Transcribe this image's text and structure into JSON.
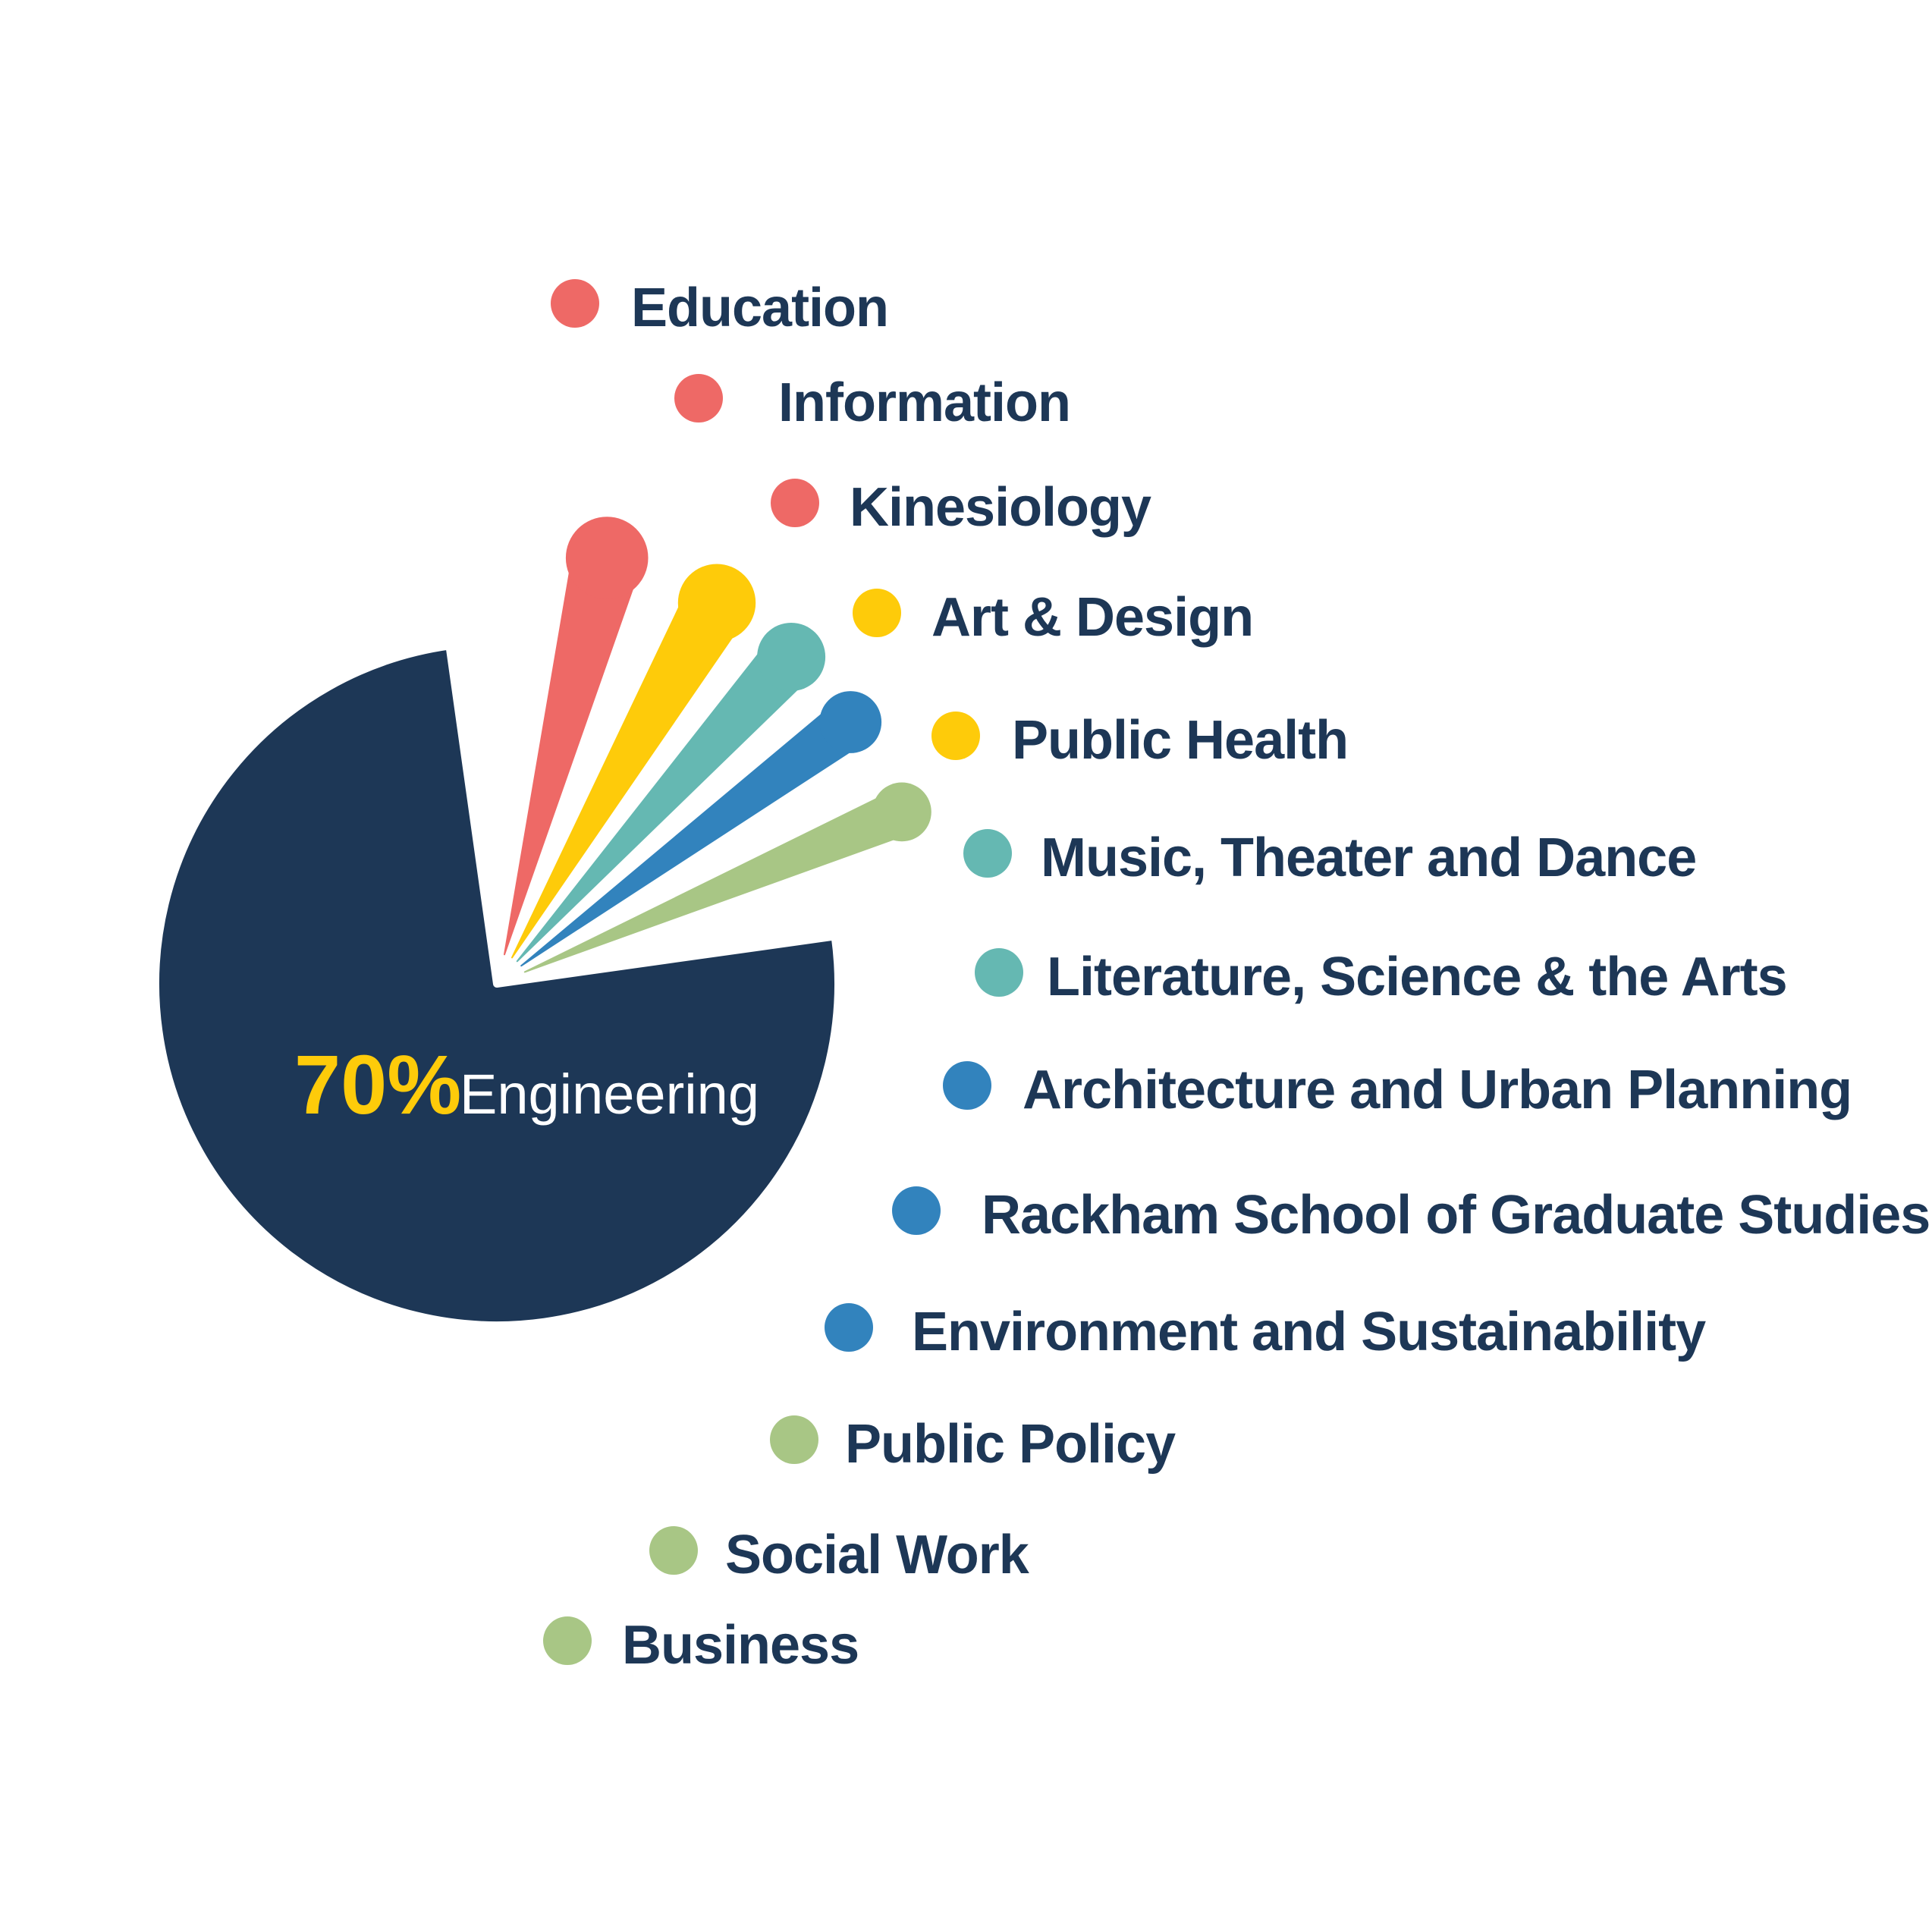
{
  "colors": {
    "background": "#ffffff",
    "engineering": "#1d3756",
    "pct_accent": "#fecb0a",
    "label_text": "#1d3756",
    "red": "#ee6966",
    "yellow": "#fecb0a",
    "teal": "#65b8b2",
    "blue": "#3283bd",
    "green": "#a8c685"
  },
  "chart_data": {
    "type": "pie",
    "main_slice": {
      "label": "Engineering",
      "value_text": "70%",
      "value": 70,
      "color": "#1d3756"
    },
    "groups": [
      {
        "color": "#ee6966",
        "items": [
          "Education",
          "Information",
          "Kinesiology"
        ]
      },
      {
        "color": "#fecb0a",
        "items": [
          "Art & Design",
          "Public Health"
        ]
      },
      {
        "color": "#65b8b2",
        "items": [
          "Music, Theater and Dance",
          "Literature, Science & the Arts"
        ]
      },
      {
        "color": "#3283bd",
        "items": [
          "Architecture and Urban Planning",
          "Rackham School of Graduate Studies",
          "Environment and Sustainability"
        ]
      },
      {
        "color": "#a8c685",
        "items": [
          "Public Policy",
          "Social Work",
          "Business"
        ]
      }
    ],
    "legend": [
      {
        "label": "Education",
        "color": "#ee6966"
      },
      {
        "label": "Information",
        "color": "#ee6966"
      },
      {
        "label": "Kinesiology",
        "color": "#ee6966"
      },
      {
        "label": "Art & Design",
        "color": "#fecb0a"
      },
      {
        "label": "Public Health",
        "color": "#fecb0a"
      },
      {
        "label": "Music, Theater and Dance",
        "color": "#65b8b2"
      },
      {
        "label": "Literature, Science & the Arts",
        "color": "#65b8b2"
      },
      {
        "label": "Architecture and Urban Planning",
        "color": "#3283bd"
      },
      {
        "label": "Rackham School of Graduate Studies",
        "color": "#3283bd"
      },
      {
        "label": "Environment and Sustainability",
        "color": "#3283bd"
      },
      {
        "label": "Public Policy",
        "color": "#a8c685"
      },
      {
        "label": "Social Work",
        "color": "#a8c685"
      },
      {
        "label": "Business",
        "color": "#a8c685"
      }
    ],
    "legend_placement": "right"
  }
}
